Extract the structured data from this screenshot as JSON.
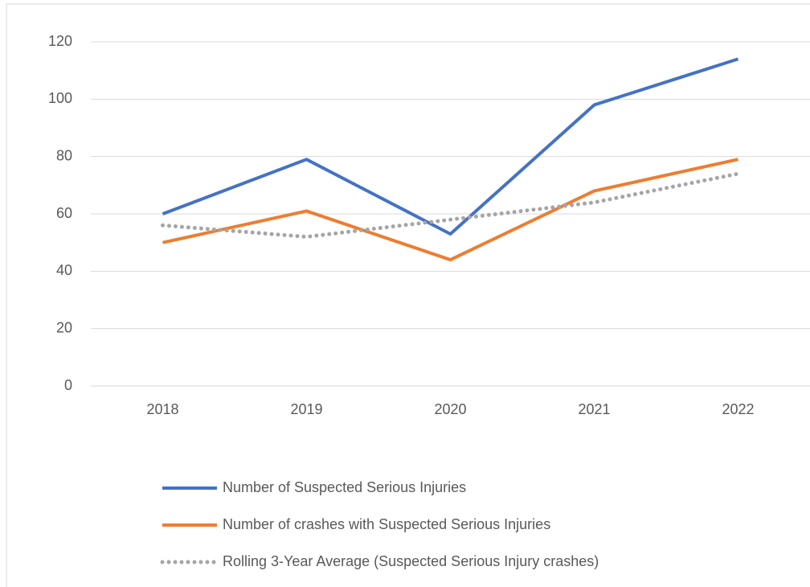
{
  "chart_data": {
    "type": "line",
    "categories": [
      "2018",
      "2019",
      "2020",
      "2021",
      "2022"
    ],
    "series": [
      {
        "name": "Number of Suspected Serious Injuries",
        "color": "#4472c4",
        "dash": "solid",
        "values": [
          60,
          79,
          53,
          98,
          114
        ]
      },
      {
        "name": "Number of crashes with Suspected Serious Injuries",
        "color": "#ed7d31",
        "dash": "solid",
        "values": [
          50,
          61,
          44,
          68,
          79
        ]
      },
      {
        "name": "Rolling 3-Year Average (Suspected Serious Injury crashes)",
        "color": "#a5a5a5",
        "dash": "dotted",
        "values": [
          56,
          52,
          58,
          64,
          74
        ]
      }
    ],
    "ylim": [
      0,
      120
    ],
    "yticks": [
      0,
      20,
      40,
      60,
      80,
      100,
      120
    ],
    "grid": true,
    "legend": "bottom"
  }
}
